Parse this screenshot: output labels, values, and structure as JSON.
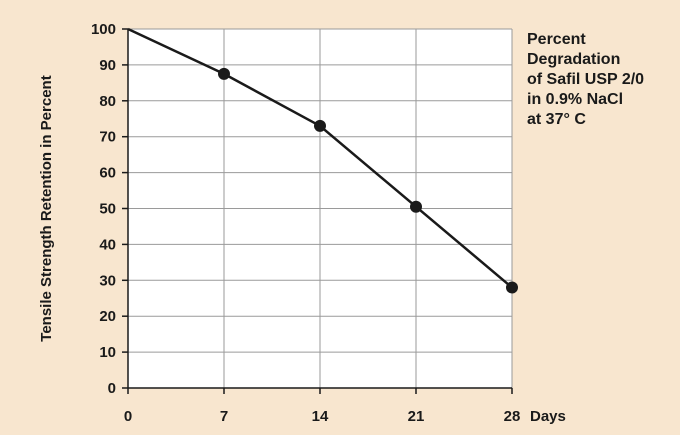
{
  "chart_data": {
    "type": "line",
    "title_lines": [
      "Percent",
      "Degradation",
      "of Safil USP 2/0",
      "in 0.9% NaCl",
      "at 37° C"
    ],
    "xlabel": "Days",
    "ylabel": "Tensile Strength Retention in Percent",
    "x_ticks": [
      0,
      7,
      14,
      21,
      28
    ],
    "y_ticks": [
      0,
      10,
      20,
      30,
      40,
      50,
      60,
      70,
      80,
      90,
      100
    ],
    "xlim": [
      0,
      28
    ],
    "ylim": [
      0,
      100
    ],
    "grid": true,
    "series": [
      {
        "x": [
          0,
          7,
          14,
          21,
          28
        ],
        "y": [
          100,
          87.5,
          73,
          50.5,
          28
        ],
        "markers": [
          7,
          14,
          21,
          28
        ]
      }
    ],
    "colors": {
      "background": "#f8e6cf",
      "plot_area": "#ffffff",
      "line": "#1a1a1a",
      "grid": "#9a9a9a"
    }
  }
}
